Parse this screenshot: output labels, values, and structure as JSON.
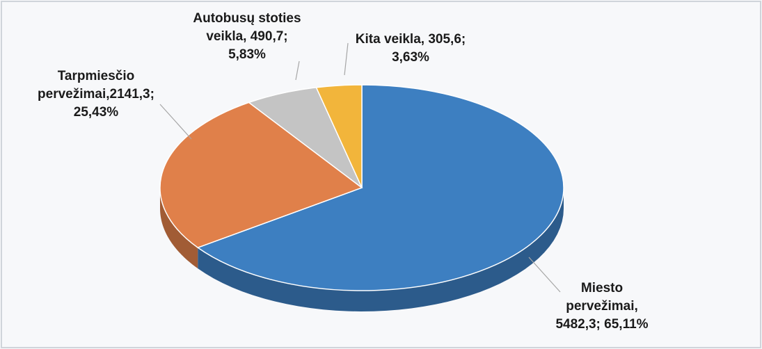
{
  "chart_data": {
    "type": "pie",
    "values": [
      5482.3,
      2141.3,
      490.7,
      305.6
    ],
    "percentages": [
      65.11,
      25.43,
      5.83,
      3.63
    ],
    "colors": [
      "#3d7fc1",
      "#e0804a",
      "#c4c4c4",
      "#f2b53b"
    ],
    "data_labels": [
      [
        "Miesto",
        "pervežimai,",
        "5482,3; 65,11%"
      ],
      [
        "Tarpmiesčio",
        "pervežimai,2141,3;",
        "25,43%"
      ],
      [
        "Autobusų stoties",
        "veikla, 490,7;",
        "5,83%"
      ],
      [
        "Kita veikla, 305,6;",
        "3,63%"
      ]
    ]
  }
}
